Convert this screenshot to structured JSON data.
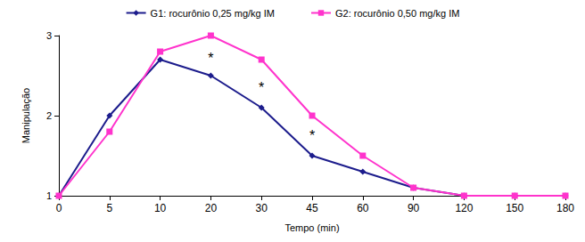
{
  "chart_data": {
    "type": "line",
    "x_label": "Tempo (min)",
    "y_label": "Manipulação",
    "categories": [
      "0",
      "5",
      "10",
      "20",
      "30",
      "45",
      "60",
      "90",
      "120",
      "150",
      "180"
    ],
    "series": [
      {
        "name": "G1: rocurônio 0,25 mg/kg IM",
        "color": "#1c1c8c",
        "marker": "diamond",
        "values": [
          1,
          2.0,
          2.7,
          2.5,
          2.1,
          1.5,
          1.3,
          1.1,
          1,
          1,
          1
        ]
      },
      {
        "name": "G2: rocurônio 0,50 mg/kg IM",
        "color": "#ff33cc",
        "marker": "square",
        "values": [
          1,
          1.8,
          2.8,
          3.0,
          2.7,
          2.0,
          1.5,
          1.1,
          1,
          1,
          1
        ]
      }
    ],
    "annotations": [
      {
        "x": "20",
        "y": 2.72,
        "text": "*"
      },
      {
        "x": "30",
        "y": 2.35,
        "text": "*"
      },
      {
        "x": "45",
        "y": 1.75,
        "text": "*"
      }
    ],
    "ylim": [
      1,
      3
    ],
    "yticks": [
      1,
      2,
      3
    ],
    "grid": false,
    "legend": "top"
  }
}
